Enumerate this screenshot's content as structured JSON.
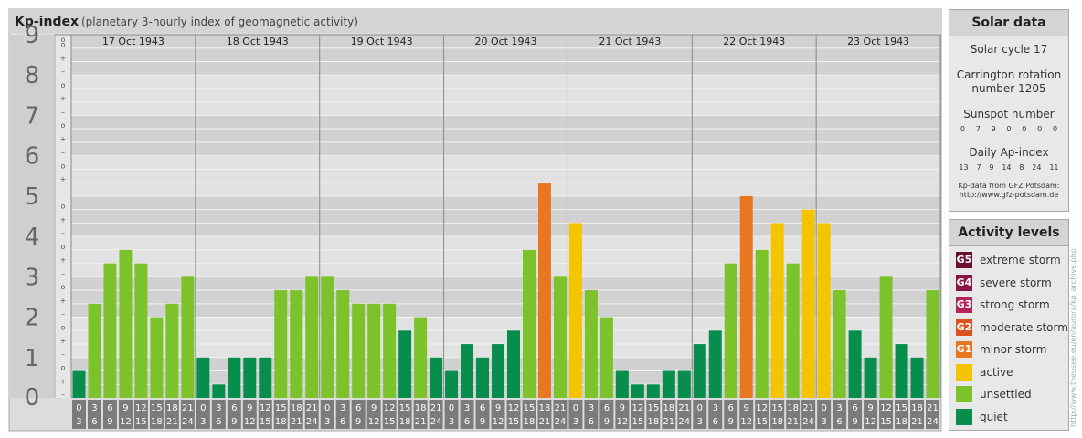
{
  "chart_data": {
    "type": "bar",
    "title": "Kp-index",
    "subtitle": "(planetary 3-hourly index of geomagnetic activity)",
    "ylim": [
      0,
      9
    ],
    "y_ticks": [
      "0",
      "1",
      "2",
      "3",
      "4",
      "5",
      "6",
      "7",
      "8",
      "9"
    ],
    "minor_marks": [
      "–",
      "+",
      "o"
    ],
    "days": [
      "17 Oct 1943",
      "18 Oct 1943",
      "19 Oct 1943",
      "20 Oct 1943",
      "21 Oct 1943",
      "22 Oct 1943",
      "23 Oct 1943"
    ],
    "slot_starts": [
      "0",
      "3",
      "6",
      "9",
      "12",
      "15",
      "18",
      "21"
    ],
    "slot_ends": [
      "3",
      "6",
      "9",
      "12",
      "15",
      "18",
      "21",
      "24"
    ],
    "values": [
      [
        0.667,
        2.333,
        3.333,
        3.667,
        3.333,
        2.0,
        2.333,
        3.0
      ],
      [
        1.0,
        0.333,
        1.0,
        1.0,
        1.0,
        2.667,
        2.667,
        3.0
      ],
      [
        3.0,
        2.667,
        2.333,
        2.333,
        2.333,
        1.667,
        2.0,
        1.0
      ],
      [
        0.667,
        1.333,
        1.0,
        1.333,
        1.667,
        3.667,
        5.333,
        3.0
      ],
      [
        4.333,
        2.667,
        2.0,
        0.667,
        0.333,
        0.333,
        0.667,
        0.667
      ],
      [
        1.333,
        1.667,
        3.333,
        5.0,
        3.667,
        4.333,
        3.333,
        4.667
      ],
      [
        4.333,
        2.667,
        1.667,
        1.0,
        3.0,
        1.333,
        1.0,
        2.667
      ]
    ]
  },
  "solar": {
    "title": "Solar data",
    "cycle": "Solar cycle 17",
    "carrington_line1": "Carrington rotation",
    "carrington_line2": "number 1205",
    "sunspot_label": "Sunspot number",
    "sunspot_values": [
      "0",
      "7",
      "9",
      "0",
      "0",
      "0",
      "0"
    ],
    "ap_label": "Daily Ap-index",
    "ap_values": [
      "13",
      "7",
      "9",
      "14",
      "8",
      "24",
      "11"
    ],
    "source_line1": "Kp-data from GFZ Potsdam:",
    "source_line2": "http://www.gfz-potsdam.de"
  },
  "legend": {
    "title": "Activity levels",
    "items": [
      {
        "code": "G5",
        "label": "extreme storm",
        "color": "#6a0f32"
      },
      {
        "code": "G4",
        "label": "severe storm",
        "color": "#8a1446"
      },
      {
        "code": "G3",
        "label": "strong storm",
        "color": "#b3255c"
      },
      {
        "code": "G2",
        "label": "moderate storm",
        "color": "#d9531e"
      },
      {
        "code": "G1",
        "label": "minor storm",
        "color": "#e87722"
      },
      {
        "code": "",
        "label": "active",
        "color": "#f5c400"
      },
      {
        "code": "",
        "label": "unsettled",
        "color": "#7cc22b"
      },
      {
        "code": "",
        "label": "quiet",
        "color": "#078d4c"
      }
    ]
  },
  "credit": "http://www.theusee.eu/en/aurora/kp_archive.php"
}
